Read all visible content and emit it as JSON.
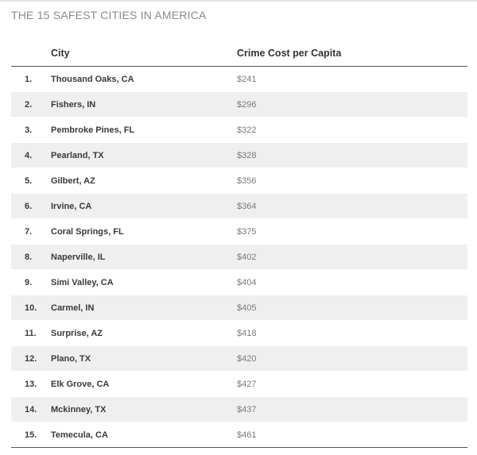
{
  "title": "THE 15 SAFEST CITIES IN AMERICA",
  "table": {
    "columns": [
      "",
      "City",
      "Crime Cost per Capita"
    ],
    "rows": [
      {
        "rank": "1.",
        "city": "Thousand Oaks, CA",
        "cost": "$241"
      },
      {
        "rank": "2.",
        "city": "Fishers, IN",
        "cost": "$296"
      },
      {
        "rank": "3.",
        "city": "Pembroke Pines, FL",
        "cost": "$322"
      },
      {
        "rank": "4.",
        "city": "Pearland, TX",
        "cost": "$328"
      },
      {
        "rank": "5.",
        "city": "Gilbert, AZ",
        "cost": "$356"
      },
      {
        "rank": "6.",
        "city": "Irvine, CA",
        "cost": "$364"
      },
      {
        "rank": "7.",
        "city": "Coral Springs, FL",
        "cost": "$375"
      },
      {
        "rank": "8.",
        "city": "Naperville, IL",
        "cost": "$402"
      },
      {
        "rank": "9.",
        "city": "Simi Valley, CA",
        "cost": "$404"
      },
      {
        "rank": "10.",
        "city": "Carmel, IN",
        "cost": "$405"
      },
      {
        "rank": "11.",
        "city": "Surprise, AZ",
        "cost": "$418"
      },
      {
        "rank": "12.",
        "city": "Plano, TX",
        "cost": "$420"
      },
      {
        "rank": "13.",
        "city": "Elk Grove, CA",
        "cost": "$427"
      },
      {
        "rank": "14.",
        "city": "Mckinney, TX",
        "cost": "$437"
      },
      {
        "rank": "15.",
        "city": "Temecula, CA",
        "cost": "$461"
      }
    ]
  },
  "chart_data": {
    "type": "table",
    "title": "THE 15 SAFEST CITIES IN AMERICA",
    "columns": [
      "",
      "City",
      "Crime Cost per Capita"
    ],
    "rows": [
      [
        "1.",
        "Thousand Oaks, CA",
        "$241"
      ],
      [
        "2.",
        "Fishers, IN",
        "$296"
      ],
      [
        "3.",
        "Pembroke Pines, FL",
        "$322"
      ],
      [
        "4.",
        "Pearland, TX",
        "$328"
      ],
      [
        "5.",
        "Gilbert, AZ",
        "$356"
      ],
      [
        "6.",
        "Irvine, CA",
        "$364"
      ],
      [
        "7.",
        "Coral Springs, FL",
        "$375"
      ],
      [
        "8.",
        "Naperville, IL",
        "$402"
      ],
      [
        "9.",
        "Simi Valley, CA",
        "$404"
      ],
      [
        "10.",
        "Carmel, IN",
        "$405"
      ],
      [
        "11.",
        "Surprise, AZ",
        "$418"
      ],
      [
        "12.",
        "Plano, TX",
        "$420"
      ],
      [
        "13.",
        "Elk Grove, CA",
        "$427"
      ],
      [
        "14.",
        "Mckinney, TX",
        "$437"
      ],
      [
        "15.",
        "Temecula, CA",
        "$461"
      ]
    ]
  }
}
